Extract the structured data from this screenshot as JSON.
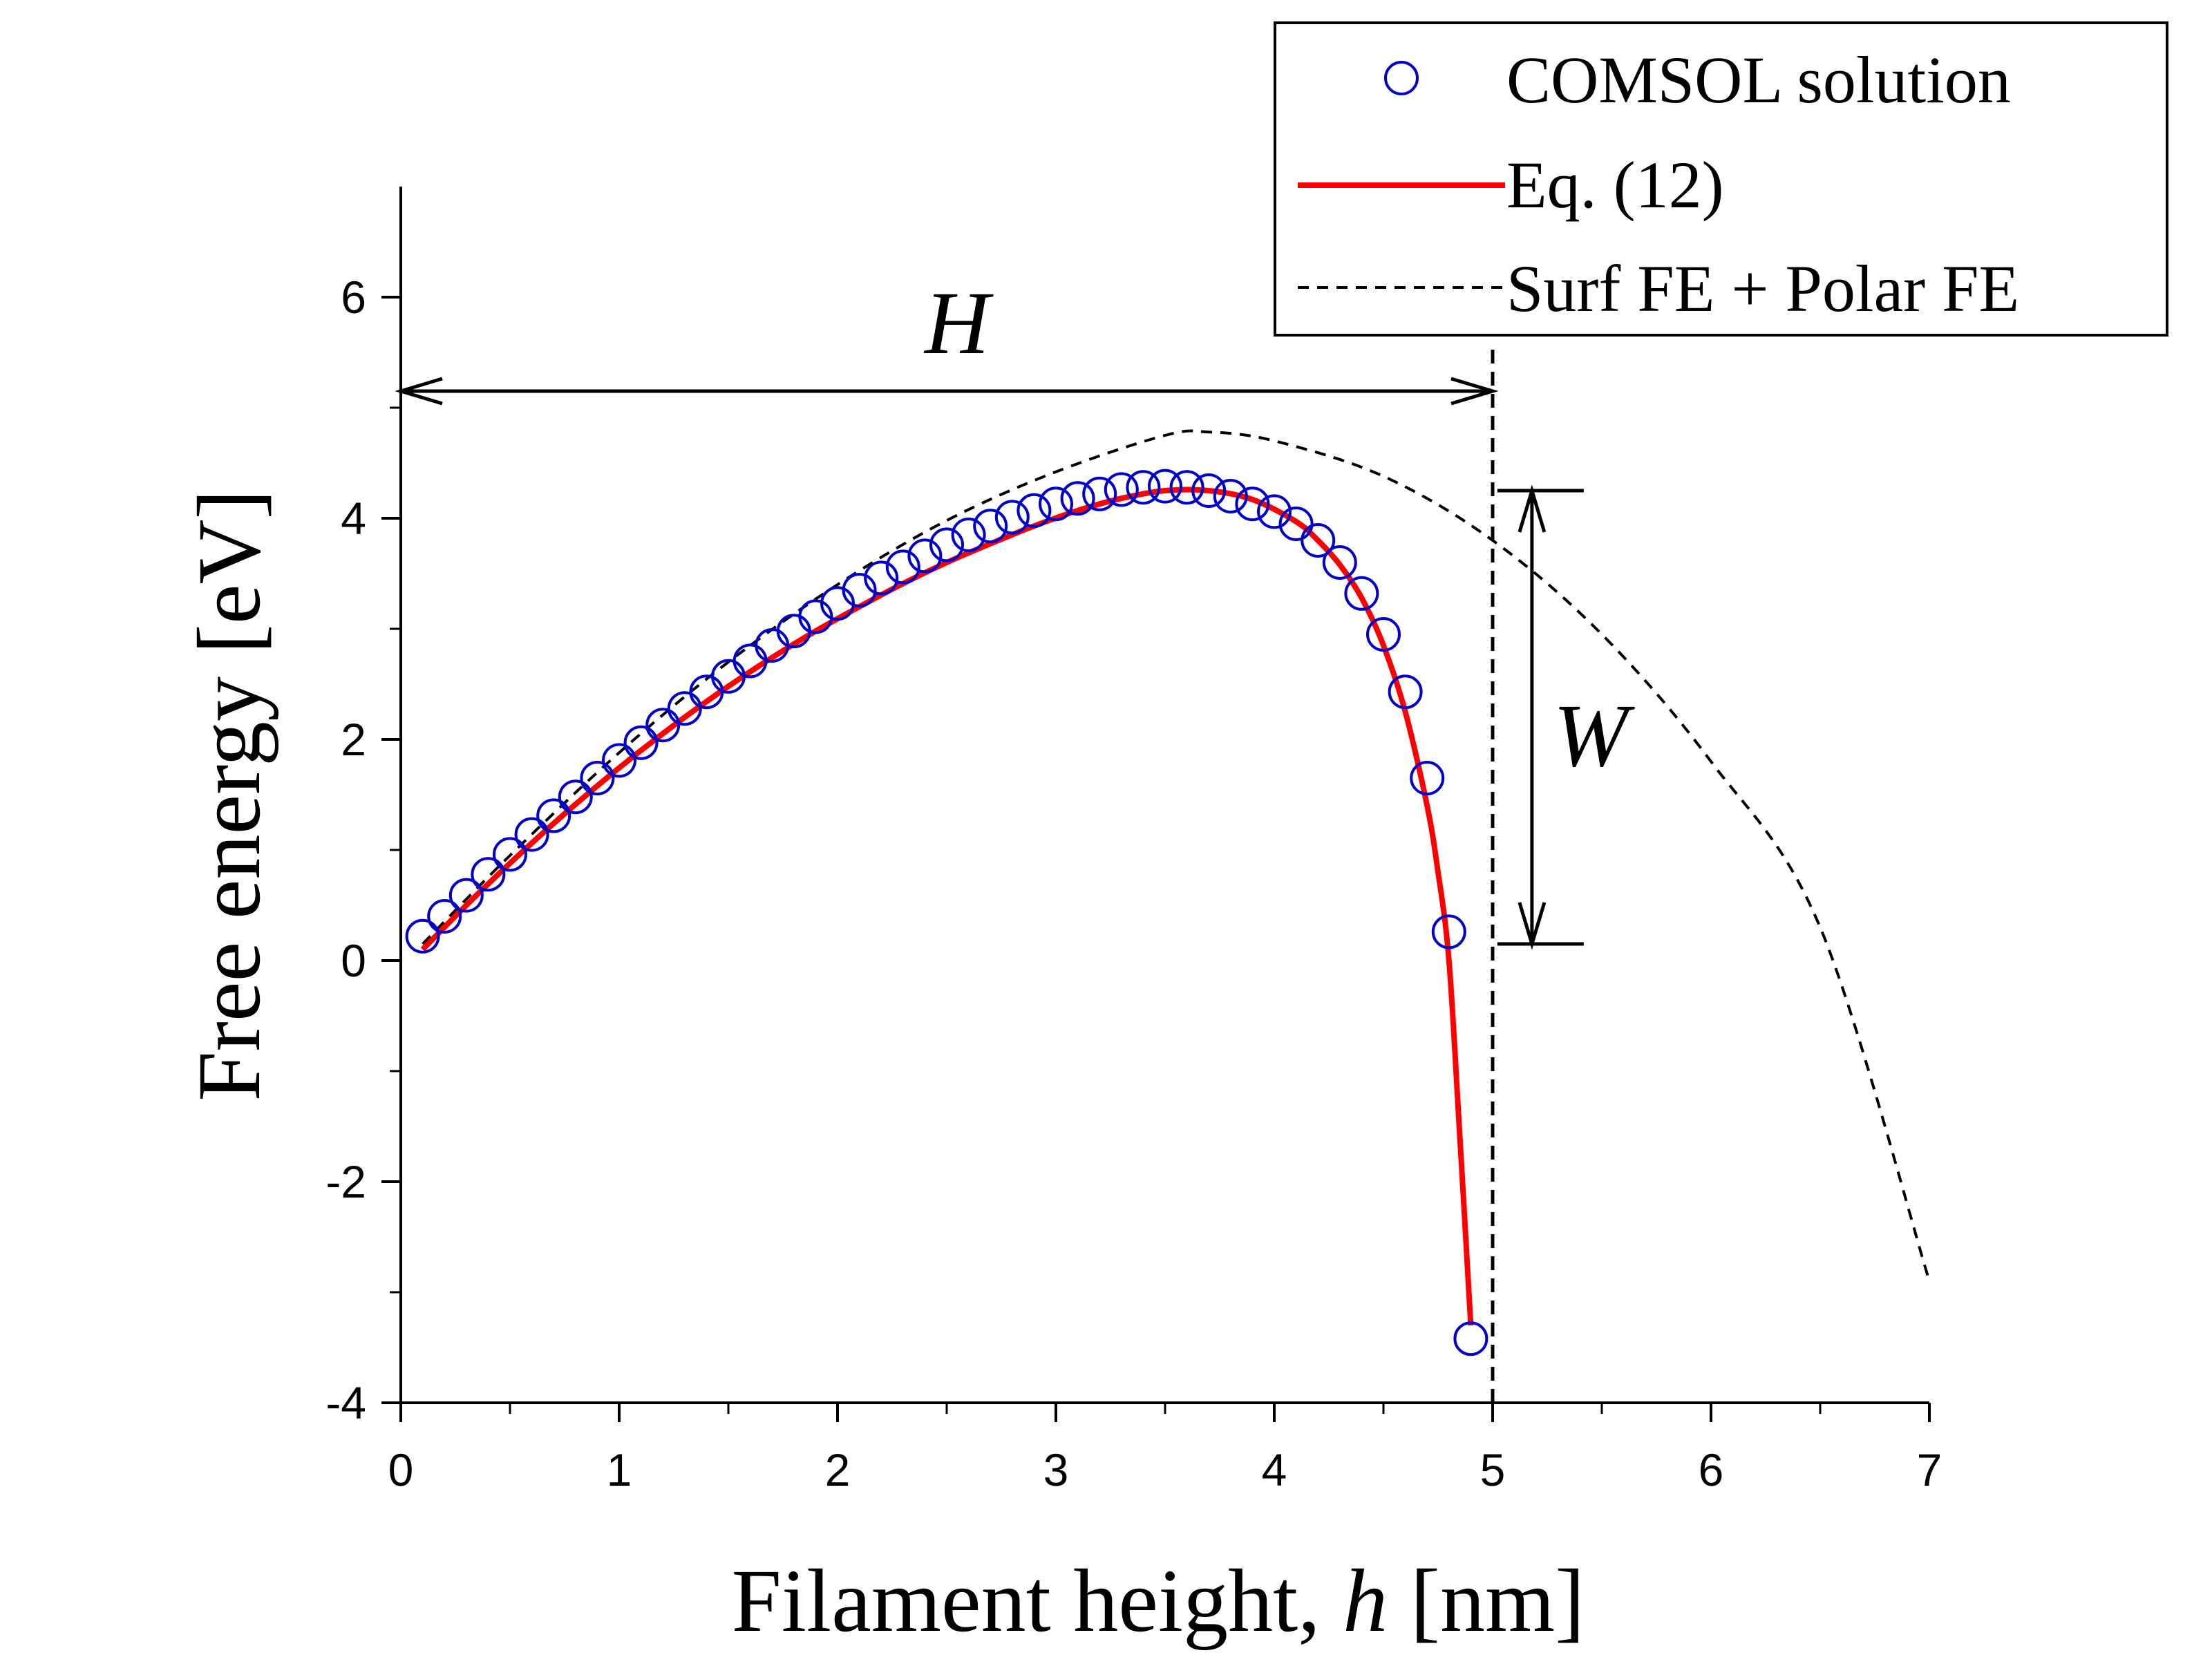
{
  "chart_data": {
    "type": "scatter",
    "title": "",
    "xlabel": "Filament height, h [nm]",
    "xlabel_parts": [
      "Filament height, ",
      "h",
      " [nm]"
    ],
    "ylabel": "Free energy [eV]",
    "xlim": [
      0,
      7
    ],
    "ylim": [
      -4,
      7
    ],
    "x_ticks": [
      0,
      1,
      2,
      3,
      4,
      5,
      6,
      7
    ],
    "y_ticks": [
      -4,
      -2,
      0,
      2,
      4,
      6
    ],
    "x_tick_labels": [
      "0",
      "1",
      "2",
      "3",
      "4",
      "5",
      "6",
      "7"
    ],
    "y_tick_labels": [
      "-4",
      "-2",
      "0",
      "2",
      "4",
      "6"
    ],
    "x_minor_step": 0.5,
    "y_minor_step": 1,
    "grid": false,
    "legend_position": "top-right",
    "colors": {
      "comsol": "#0000cc",
      "eq12": "#ff0000",
      "surf_polar": "#000000"
    },
    "series": [
      {
        "name": "COMSOL solution",
        "kind": "markers",
        "x": [
          0.1,
          0.2,
          0.3,
          0.4,
          0.5,
          0.6,
          0.7,
          0.8,
          0.9,
          1.0,
          1.1,
          1.2,
          1.3,
          1.4,
          1.5,
          1.6,
          1.7,
          1.8,
          1.9,
          2.0,
          2.1,
          2.2,
          2.3,
          2.4,
          2.5,
          2.6,
          2.7,
          2.8,
          2.9,
          3.0,
          3.1,
          3.2,
          3.3,
          3.4,
          3.5,
          3.6,
          3.7,
          3.8,
          3.9,
          4.0,
          4.1,
          4.2,
          4.3,
          4.4,
          4.5,
          4.6,
          4.7,
          4.8,
          4.9
        ],
        "values": [
          0.22,
          0.4,
          0.59,
          0.78,
          0.96,
          1.14,
          1.31,
          1.48,
          1.65,
          1.81,
          1.97,
          2.13,
          2.28,
          2.43,
          2.57,
          2.71,
          2.85,
          2.98,
          3.11,
          3.23,
          3.35,
          3.46,
          3.56,
          3.66,
          3.76,
          3.85,
          3.93,
          4.01,
          4.07,
          4.13,
          4.18,
          4.22,
          4.26,
          4.28,
          4.29,
          4.28,
          4.25,
          4.2,
          4.13,
          4.06,
          3.95,
          3.8,
          3.6,
          3.32,
          2.95,
          2.43,
          1.65,
          0.26,
          -3.42
        ]
      },
      {
        "name": "Eq. (12)",
        "kind": "line",
        "x": [
          0.1,
          0.3,
          0.5,
          0.7,
          0.9,
          1.1,
          1.3,
          1.5,
          1.7,
          1.9,
          2.1,
          2.3,
          2.5,
          2.7,
          2.9,
          3.1,
          3.3,
          3.5,
          3.7,
          3.9,
          4.1,
          4.2,
          4.3,
          4.4,
          4.5,
          4.6,
          4.7,
          4.75,
          4.8,
          4.85,
          4.9
        ],
        "values": [
          0.1,
          0.5,
          0.88,
          1.24,
          1.58,
          1.9,
          2.2,
          2.48,
          2.74,
          2.98,
          3.2,
          3.41,
          3.6,
          3.77,
          3.93,
          4.07,
          4.18,
          4.25,
          4.25,
          4.17,
          3.97,
          3.8,
          3.58,
          3.28,
          2.85,
          2.25,
          1.4,
          0.8,
          0.0,
          -1.6,
          -3.3
        ]
      },
      {
        "name": "Surf FE + Polar FE",
        "kind": "dashed-line",
        "x": [
          0.1,
          0.5,
          1.0,
          1.5,
          2.0,
          2.5,
          3.0,
          3.5,
          3.7,
          4.0,
          4.5,
          5.0,
          5.5,
          6.0,
          6.5,
          7.0
        ],
        "values": [
          0.15,
          0.95,
          1.88,
          2.7,
          3.4,
          3.98,
          4.42,
          4.75,
          4.78,
          4.7,
          4.38,
          3.8,
          2.95,
          1.8,
          0.3,
          -2.9
        ]
      }
    ],
    "annotations": {
      "H": {
        "label": "H",
        "x_from": 0,
        "x_to": 5,
        "y": 5.15
      },
      "W": {
        "label": "W",
        "x": 5.18,
        "y_from": 0.15,
        "y_to": 4.25
      },
      "vertical_dashed_line": {
        "x": 5
      }
    }
  }
}
